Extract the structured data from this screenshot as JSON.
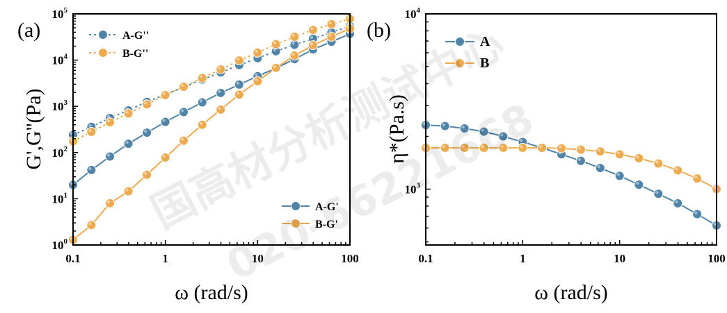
{
  "watermark": {
    "line1": "国高材分析测试中心",
    "line2": "020-66221668"
  },
  "colors": {
    "A": "#4f84a8",
    "B": "#eeaa4e"
  },
  "chart_data": [
    {
      "panel_label": "(a)",
      "type": "line",
      "xlabel": "ω (rad/s)",
      "ylabel": "G',G''(Pa)",
      "xscale": "log",
      "yscale": "log",
      "xlim": [
        0.1,
        100
      ],
      "ylim": [
        1,
        100000
      ],
      "xticks": [
        0.1,
        1,
        10,
        100
      ],
      "xtick_labels": [
        "0.1",
        "1",
        "10",
        "100"
      ],
      "yticks": [
        1,
        10,
        100,
        1000,
        10000,
        100000
      ],
      "ytick_labels": [
        {
          "base": "10",
          "exp": "0"
        },
        {
          "base": "10",
          "exp": "1"
        },
        {
          "base": "10",
          "exp": "2"
        },
        {
          "base": "10",
          "exp": "3"
        },
        {
          "base": "10",
          "exp": "4"
        },
        {
          "base": "10",
          "exp": "5"
        }
      ],
      "x": [
        0.1,
        0.158,
        0.251,
        0.398,
        0.631,
        1,
        1.58,
        2.51,
        3.98,
        6.31,
        10,
        15.8,
        25.1,
        39.8,
        63.1,
        100
      ],
      "series": [
        {
          "name": "A-G''",
          "color_key": "A",
          "style": "dotted",
          "values": [
            240,
            360,
            560,
            820,
            1250,
            1800,
            2600,
            3800,
            5400,
            7800,
            11000,
            15500,
            21500,
            29000,
            40000,
            54000
          ]
        },
        {
          "name": "B-G''",
          "color_key": "B",
          "style": "dotted",
          "values": [
            175,
            280,
            450,
            700,
            1100,
            1750,
            2650,
            4100,
            6300,
            9800,
            14500,
            22000,
            32000,
            45000,
            60000,
            78000
          ]
        },
        {
          "name": "A-G'",
          "color_key": "A",
          "style": "solid",
          "values": [
            20,
            42,
            82,
            155,
            270,
            460,
            750,
            1220,
            1950,
            2950,
            4500,
            6700,
            10500,
            17000,
            25000,
            37000
          ]
        },
        {
          "name": "B-G'",
          "color_key": "B",
          "style": "solid",
          "values": [
            1.3,
            2.7,
            8,
            14.5,
            33,
            78,
            180,
            400,
            850,
            1800,
            3500,
            6800,
            12500,
            21000,
            32000,
            48000
          ]
        }
      ],
      "legend_top": [
        "A-G''",
        "B-G''"
      ],
      "legend_bottom": [
        "A-G'",
        "B-G'"
      ]
    },
    {
      "panel_label": "(b)",
      "type": "line",
      "xlabel": "ω (rad/s)",
      "ylabel": "η*(Pa.s)",
      "xscale": "log",
      "yscale": "log",
      "xlim": [
        0.1,
        100
      ],
      "ylim": [
        480,
        10000
      ],
      "xticks": [
        0.1,
        1,
        10,
        100
      ],
      "xtick_labels": [
        "0.1",
        "1",
        "10",
        "100"
      ],
      "yticks": [
        1000,
        10000
      ],
      "ytick_labels": [
        {
          "base": "10",
          "exp": "3"
        },
        {
          "base": "10",
          "exp": "4"
        }
      ],
      "x": [
        0.1,
        0.158,
        0.251,
        0.398,
        0.631,
        1,
        1.58,
        2.51,
        3.98,
        6.31,
        10,
        15.8,
        25.1,
        39.8,
        63.1,
        100
      ],
      "series": [
        {
          "name": "A",
          "color_key": "A",
          "style": "solid",
          "values": [
            2320,
            2290,
            2220,
            2130,
            2000,
            1860,
            1720,
            1580,
            1450,
            1320,
            1190,
            1060,
            940,
            830,
            720,
            620
          ]
        },
        {
          "name": "B",
          "color_key": "B",
          "style": "solid",
          "values": [
            1720,
            1720,
            1720,
            1720,
            1720,
            1720,
            1720,
            1710,
            1680,
            1640,
            1580,
            1500,
            1400,
            1280,
            1150,
            1000
          ]
        }
      ],
      "legend": [
        "A",
        "B"
      ]
    }
  ]
}
